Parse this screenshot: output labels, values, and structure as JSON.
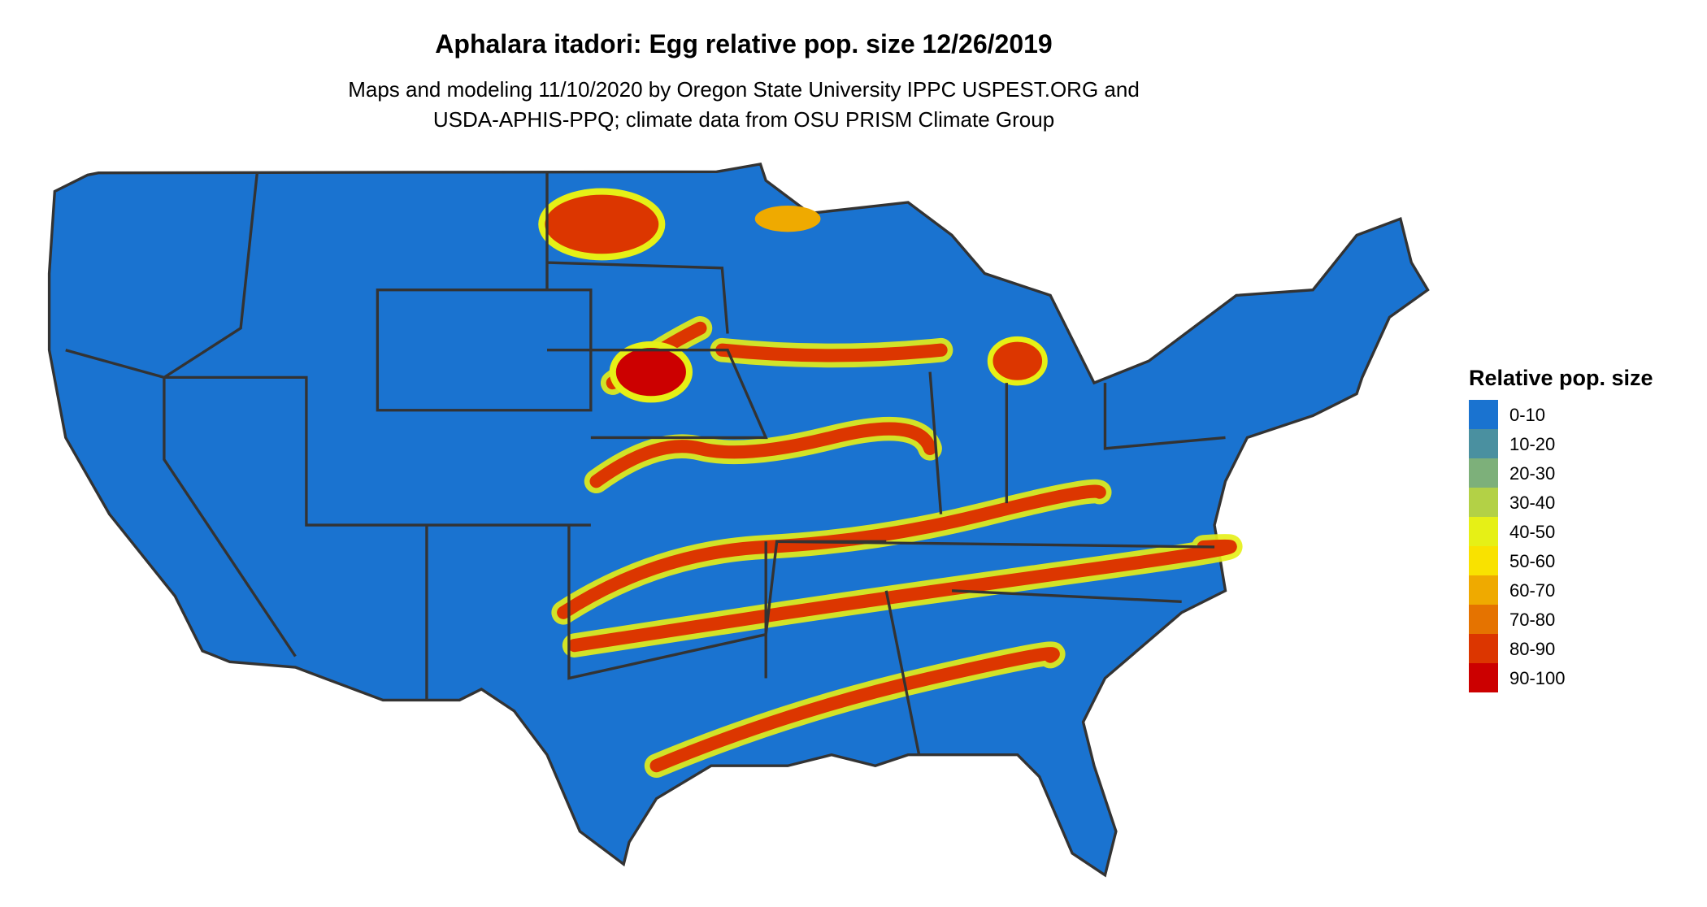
{
  "title": "Aphalara itadori: Egg relative pop. size 12/26/2019",
  "subtitle": [
    "Maps and modeling 11/10/2020 by Oregon State University IPPC USPEST.ORG and",
    "USDA-APHIS-PPQ; climate data from OSU PRISM Climate Group"
  ],
  "map": {
    "region": "Contiguous United States",
    "state_borders": true,
    "background": "#1a73d0"
  },
  "legend": {
    "title": "Relative pop. size",
    "position": "right",
    "items": [
      {
        "label": "0-10",
        "color": "#1a73d0"
      },
      {
        "label": "10-20",
        "color": "#4a90a0"
      },
      {
        "label": "20-30",
        "color": "#7db07a"
      },
      {
        "label": "30-40",
        "color": "#b3d146"
      },
      {
        "label": "40-50",
        "color": "#e6f016"
      },
      {
        "label": "50-60",
        "color": "#f9e200"
      },
      {
        "label": "60-70",
        "color": "#efaa00"
      },
      {
        "label": "70-80",
        "color": "#e57300"
      },
      {
        "label": "80-90",
        "color": "#dc3600"
      },
      {
        "label": "90-100",
        "color": "#cc0000"
      }
    ]
  }
}
